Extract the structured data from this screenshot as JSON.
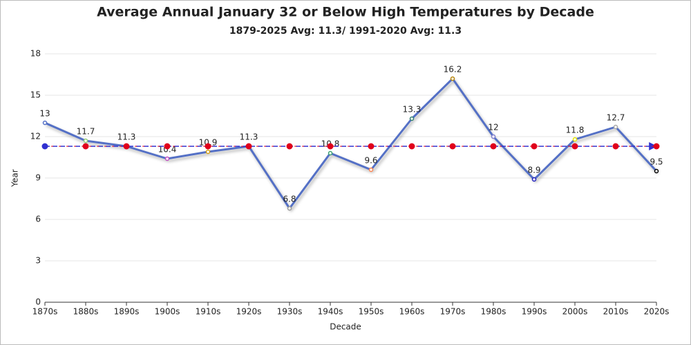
{
  "chart_data": {
    "type": "line",
    "title": "Average Annual January 32 or Below High Temperatures by Decade",
    "subtitle": "1879-2025 Avg: 11.3/ 1991-2020 Avg: 11.3",
    "x_label": "Decade",
    "y_label": "Year",
    "categories": [
      "1870s",
      "1880s",
      "1890s",
      "1900s",
      "1910s",
      "1920s",
      "1930s",
      "1940s",
      "1950s",
      "1960s",
      "1970s",
      "1980s",
      "1990s",
      "2000s",
      "2010s",
      "2020s"
    ],
    "series": [
      {
        "color": "#5470c6",
        "values": [
          13,
          11.7,
          11.3,
          10.4,
          10.9,
          11.3,
          6.8,
          10.8,
          9.6,
          13.3,
          16.2,
          12,
          8.9,
          11.8,
          12.7,
          9.5
        ],
        "point_colors": [
          "#5470c6",
          "#91cc75",
          "#fac858",
          "#c04fc0",
          "#d4a017",
          "#ee6666",
          "#999999",
          "#3ba272",
          "#fc8452",
          "#2f7f6f",
          "#b8860b",
          "#7f7fcf",
          "#1f1fbf",
          "#e6e600",
          "#aaaaaa",
          "#000000"
        ],
        "labels": true
      },
      {
        "color": "#e0001b",
        "line_color": "#3030d0",
        "dashed": true,
        "values": [
          11.3,
          11.3,
          11.3,
          11.3,
          11.3,
          11.3,
          11.3,
          11.3,
          11.3,
          11.3,
          11.3,
          11.3,
          11.3,
          11.3,
          11.3,
          11.3
        ]
      }
    ],
    "ylim": [
      0,
      18
    ],
    "yticks": [
      0,
      3,
      6,
      9,
      12,
      15,
      18
    ],
    "grid": true
  }
}
